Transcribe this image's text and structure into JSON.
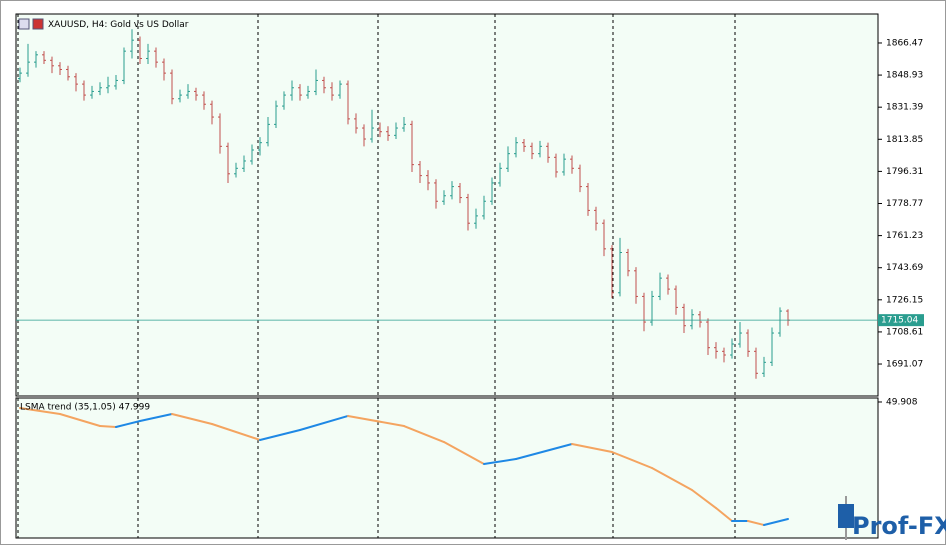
{
  "chart_data": [
    {
      "type": "ohlc",
      "title": "XAUUSD, H4:  Gold vs US Dollar",
      "up_color": "#2a9d8f",
      "down_color": "#c0504d",
      "background": "#f3fdf6",
      "xlim": [
        -0.5,
        107.25
      ],
      "ylim": [
        1673.6,
        1882.3
      ],
      "yticks": [
        1866.47,
        1848.93,
        1831.39,
        1813.85,
        1796.31,
        1778.77,
        1761.23,
        1743.69,
        1726.15,
        1708.61,
        1691.07
      ],
      "current_price": 1715.04,
      "current_color": "#2a9d8f",
      "open": [
        1847,
        1850,
        1856,
        1860,
        1857,
        1854,
        1852,
        1848,
        1844,
        1838,
        1840,
        1842,
        1843,
        1846,
        1862,
        1868,
        1858,
        1862,
        1856,
        1850,
        1836,
        1838,
        1840,
        1838,
        1833,
        1826,
        1810,
        1795,
        1798,
        1802,
        1808,
        1812,
        1822,
        1832,
        1838,
        1842,
        1838,
        1840,
        1846,
        1842,
        1838,
        1844,
        1825,
        1820,
        1814,
        1820,
        1818,
        1816,
        1820,
        1822,
        1800,
        1794,
        1790,
        1780,
        1783,
        1788,
        1782,
        1768,
        1772,
        1780,
        1790,
        1798,
        1806,
        1812,
        1810,
        1806,
        1810,
        1804,
        1796,
        1803,
        1798,
        1788,
        1775,
        1768,
        1754,
        1730,
        1752,
        1742,
        1728,
        1714,
        1728,
        1738,
        1732,
        1722,
        1712,
        1718,
        1714,
        1700,
        1698,
        1696,
        1702,
        1708,
        1698,
        1686,
        1692,
        1708,
        1720
      ],
      "high": [
        1853,
        1866,
        1862,
        1862,
        1859,
        1856,
        1854,
        1850,
        1846,
        1843,
        1845,
        1848,
        1849,
        1864,
        1874,
        1870,
        1866,
        1864,
        1858,
        1852,
        1841,
        1844,
        1842,
        1840,
        1835,
        1828,
        1812,
        1801,
        1805,
        1811,
        1815,
        1826,
        1835,
        1840,
        1846,
        1844,
        1843,
        1852,
        1848,
        1845,
        1846,
        1846,
        1828,
        1822,
        1830,
        1823,
        1821,
        1823,
        1826,
        1824,
        1802,
        1797,
        1792,
        1786,
        1791,
        1790,
        1784,
        1776,
        1783,
        1793,
        1801,
        1810,
        1815,
        1814,
        1812,
        1813,
        1812,
        1806,
        1806,
        1805,
        1800,
        1790,
        1777,
        1770,
        1756,
        1760,
        1754,
        1744,
        1730,
        1731,
        1741,
        1740,
        1734,
        1724,
        1721,
        1720,
        1716,
        1703,
        1700,
        1705,
        1714,
        1710,
        1700,
        1695,
        1711,
        1722,
        1721
      ],
      "low": [
        1845,
        1848,
        1853,
        1855,
        1850,
        1849,
        1846,
        1840,
        1835,
        1836,
        1838,
        1839,
        1841,
        1844,
        1858,
        1855,
        1855,
        1853,
        1846,
        1833,
        1834,
        1836,
        1835,
        1830,
        1822,
        1806,
        1790,
        1793,
        1796,
        1800,
        1805,
        1810,
        1820,
        1830,
        1835,
        1835,
        1836,
        1838,
        1839,
        1835,
        1836,
        1822,
        1817,
        1810,
        1812,
        1815,
        1813,
        1814,
        1818,
        1796,
        1790,
        1786,
        1776,
        1778,
        1781,
        1779,
        1764,
        1765,
        1770,
        1778,
        1788,
        1796,
        1804,
        1807,
        1803,
        1804,
        1801,
        1793,
        1794,
        1795,
        1785,
        1772,
        1764,
        1750,
        1727,
        1728,
        1739,
        1724,
        1709,
        1712,
        1726,
        1729,
        1718,
        1708,
        1710,
        1711,
        1696,
        1694,
        1692,
        1694,
        1700,
        1695,
        1683,
        1684,
        1690,
        1706,
        1712
      ],
      "close": [
        1850,
        1856,
        1860,
        1857,
        1854,
        1852,
        1848,
        1844,
        1838,
        1840,
        1842,
        1843,
        1846,
        1862,
        1868,
        1858,
        1862,
        1856,
        1850,
        1836,
        1838,
        1840,
        1838,
        1833,
        1826,
        1810,
        1795,
        1798,
        1802,
        1808,
        1812,
        1822,
        1832,
        1838,
        1842,
        1838,
        1840,
        1846,
        1842,
        1838,
        1844,
        1825,
        1820,
        1814,
        1820,
        1818,
        1816,
        1820,
        1822,
        1800,
        1794,
        1790,
        1780,
        1783,
        1788,
        1782,
        1768,
        1772,
        1780,
        1790,
        1798,
        1806,
        1812,
        1810,
        1806,
        1810,
        1804,
        1796,
        1803,
        1798,
        1788,
        1775,
        1768,
        1754,
        1730,
        1752,
        1742,
        1728,
        1714,
        1728,
        1738,
        1732,
        1722,
        1712,
        1718,
        1714,
        1700,
        1698,
        1696,
        1702,
        1708,
        1698,
        1686,
        1692,
        1708,
        1720,
        1715
      ]
    },
    {
      "type": "line",
      "title": "LSMA trend (35,1.05) 47.999",
      "up_color": "#1e88e5",
      "down_color": "#f4a460",
      "background": "#f3fdf6",
      "xlim": [
        -0.5,
        107.25
      ],
      "ylim": [
        47.689,
        49.973
      ],
      "yticks": [
        49.908
      ],
      "x": [
        0,
        5,
        10,
        12,
        15,
        19,
        24,
        30,
        35,
        41,
        48,
        53,
        58,
        62,
        69,
        74,
        79,
        84,
        87,
        89,
        91,
        93,
        96
      ],
      "values": [
        49.81,
        49.712,
        49.516,
        49.5,
        49.598,
        49.712,
        49.549,
        49.288,
        49.451,
        49.68,
        49.516,
        49.255,
        48.896,
        48.978,
        49.223,
        49.092,
        48.831,
        48.472,
        48.178,
        47.966,
        47.966,
        47.901,
        47.999
      ]
    }
  ],
  "watermark": "Prof-FX"
}
